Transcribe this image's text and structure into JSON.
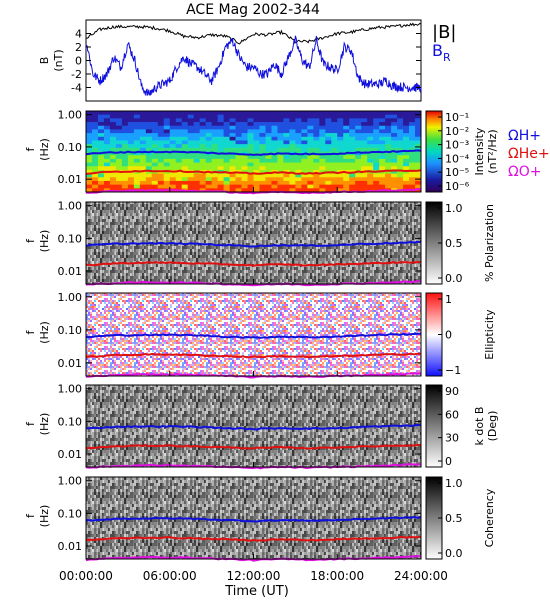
{
  "chart_data": {
    "title": "ACE Mag 2002-344",
    "type": "multi-panel",
    "time_axis": {
      "label": "Time (UT)",
      "ticks": [
        "00:00:00",
        "06:00:00",
        "12:00:00",
        "18:00:00",
        "24:00:00"
      ],
      "range_hours": [
        0,
        24
      ]
    },
    "panels": [
      {
        "id": "b-field",
        "type": "line",
        "ylabel": "B",
        "yunits": "(nT)",
        "ylim": [
          -6,
          6
        ],
        "yticks": [
          "4",
          "2",
          "0",
          "-2",
          "-4"
        ],
        "series": [
          {
            "name": "|B|",
            "color": "#000000",
            "x": [
              0,
              1,
              2,
              3,
              4,
              5,
              6,
              7,
              8,
              9,
              10,
              11,
              12,
              13,
              14,
              15,
              16,
              17,
              18,
              19,
              20,
              21,
              22,
              23,
              24
            ],
            "values": [
              3.2,
              4.6,
              5.0,
              5.0,
              5.0,
              4.8,
              4.4,
              3.6,
              3.4,
              3.8,
              3.6,
              2.6,
              3.9,
              3.8,
              4.2,
              2.8,
              2.8,
              3.4,
              4.0,
              4.2,
              4.6,
              4.9,
              5.0,
              5.3,
              5.4
            ]
          },
          {
            "name": "B_R",
            "color": "#1010dd",
            "x": [
              0,
              0.5,
              1,
              1.5,
              2,
              2.5,
              3,
              3.5,
              4,
              4.5,
              5,
              5.5,
              6,
              6.5,
              7,
              7.5,
              8,
              8.5,
              9,
              9.5,
              10,
              10.5,
              11,
              11.5,
              12,
              12.5,
              13,
              13.5,
              14,
              14.5,
              15,
              15.5,
              16,
              16.5,
              17,
              17.5,
              18,
              18.5,
              19,
              19.5,
              20,
              20.5,
              21,
              21.5,
              22,
              22.5,
              23,
              23.5,
              24
            ],
            "values": [
              3.0,
              -2.0,
              -3.0,
              -2.0,
              0.5,
              -1.0,
              2.5,
              0.0,
              -4.0,
              -5.0,
              -4.0,
              -3.5,
              -3.0,
              -1.0,
              0.5,
              -0.5,
              -1.0,
              -2.0,
              -3.0,
              -1.0,
              2.0,
              3.0,
              0.5,
              -1.0,
              -1.0,
              -2.0,
              -2.0,
              -0.5,
              -2.0,
              0.5,
              3.0,
              0.0,
              -1.0,
              3.0,
              -0.5,
              -1.0,
              -1.5,
              2.0,
              1.5,
              -2.5,
              -3.5,
              -3.5,
              -3.5,
              -3.0,
              -3.8,
              -3.9,
              -4.0,
              -4.0,
              -4.0
            ]
          }
        ]
      },
      {
        "id": "intensity",
        "type": "heatmap",
        "ylabel": "f",
        "yunits": "(Hz)",
        "yscale": "log",
        "ylim": [
          0.004,
          1.3
        ],
        "yticks": [
          "1.00",
          "0.10",
          "0.01"
        ],
        "colorbar": {
          "label": "Intensity",
          "units": "(nT²/Hz)",
          "ticks": [
            "10⁻¹",
            "10⁻²",
            "10⁻³",
            "10⁻⁴",
            "10⁻⁵",
            "10⁻⁶"
          ],
          "scale": "rainbow"
        },
        "legend": [
          {
            "label": "ΩH+",
            "color": "#1010dd"
          },
          {
            "label": "ΩHe+",
            "color": "#e01010"
          },
          {
            "label": "ΩO+",
            "color": "#e010e0"
          }
        ]
      },
      {
        "id": "polarization",
        "type": "heatmap",
        "ylabel": "f",
        "yunits": "(Hz)",
        "yscale": "log",
        "ylim": [
          0.004,
          1.3
        ],
        "yticks": [
          "1.00",
          "0.10",
          "0.01"
        ],
        "colorbar": {
          "label": "% Polarization",
          "units": "",
          "ticks": [
            "1.0",
            "0.5",
            "0.0"
          ],
          "scale": "gray-reverse"
        }
      },
      {
        "id": "ellipticity",
        "type": "heatmap",
        "ylabel": "f",
        "yunits": "(Hz)",
        "yscale": "log",
        "ylim": [
          0.004,
          1.3
        ],
        "yticks": [
          "1.00",
          "0.10",
          "0.01"
        ],
        "colorbar": {
          "label": "Ellipticity",
          "units": "",
          "ticks": [
            "1",
            "0",
            "−1"
          ],
          "scale": "red-white-blue"
        }
      },
      {
        "id": "kdotb",
        "type": "heatmap",
        "ylabel": "f",
        "yunits": "(Hz)",
        "yscale": "log",
        "ylim": [
          0.004,
          1.3
        ],
        "yticks": [
          "1.00",
          "0.10",
          "0.01"
        ],
        "colorbar": {
          "label": "k dot B",
          "units": "(Deg)",
          "ticks": [
            "90",
            "60",
            "30",
            "0"
          ],
          "scale": "gray-reverse"
        }
      },
      {
        "id": "coherency",
        "type": "heatmap",
        "ylabel": "f",
        "yunits": "(Hz)",
        "yscale": "log",
        "ylim": [
          0.004,
          1.3
        ],
        "yticks": [
          "1.00",
          "0.10",
          "0.01"
        ],
        "colorbar": {
          "label": "Coherency",
          "units": "",
          "ticks": [
            "1.0",
            "0.5",
            "0.0"
          ],
          "scale": "gray-reverse"
        }
      }
    ],
    "gyrofrequency_overlays": {
      "x": [
        0,
        2,
        4,
        6,
        8,
        10,
        12,
        14,
        16,
        18,
        20,
        22,
        24
      ],
      "H+": [
        0.06,
        0.068,
        0.07,
        0.07,
        0.068,
        0.062,
        0.058,
        0.062,
        0.06,
        0.062,
        0.068,
        0.072,
        0.076
      ],
      "He+": [
        0.015,
        0.017,
        0.018,
        0.018,
        0.017,
        0.016,
        0.015,
        0.016,
        0.015,
        0.016,
        0.017,
        0.018,
        0.019
      ],
      "O+": [
        0.0038,
        0.0042,
        0.0045,
        0.0045,
        0.0043,
        0.004,
        0.0037,
        0.004,
        0.0038,
        0.004,
        0.0042,
        0.0045,
        0.0048
      ]
    },
    "legend_top": [
      {
        "label": "|B|",
        "color": "#000000"
      },
      {
        "label": "B",
        "sub": "R",
        "color": "#1010dd"
      }
    ]
  }
}
